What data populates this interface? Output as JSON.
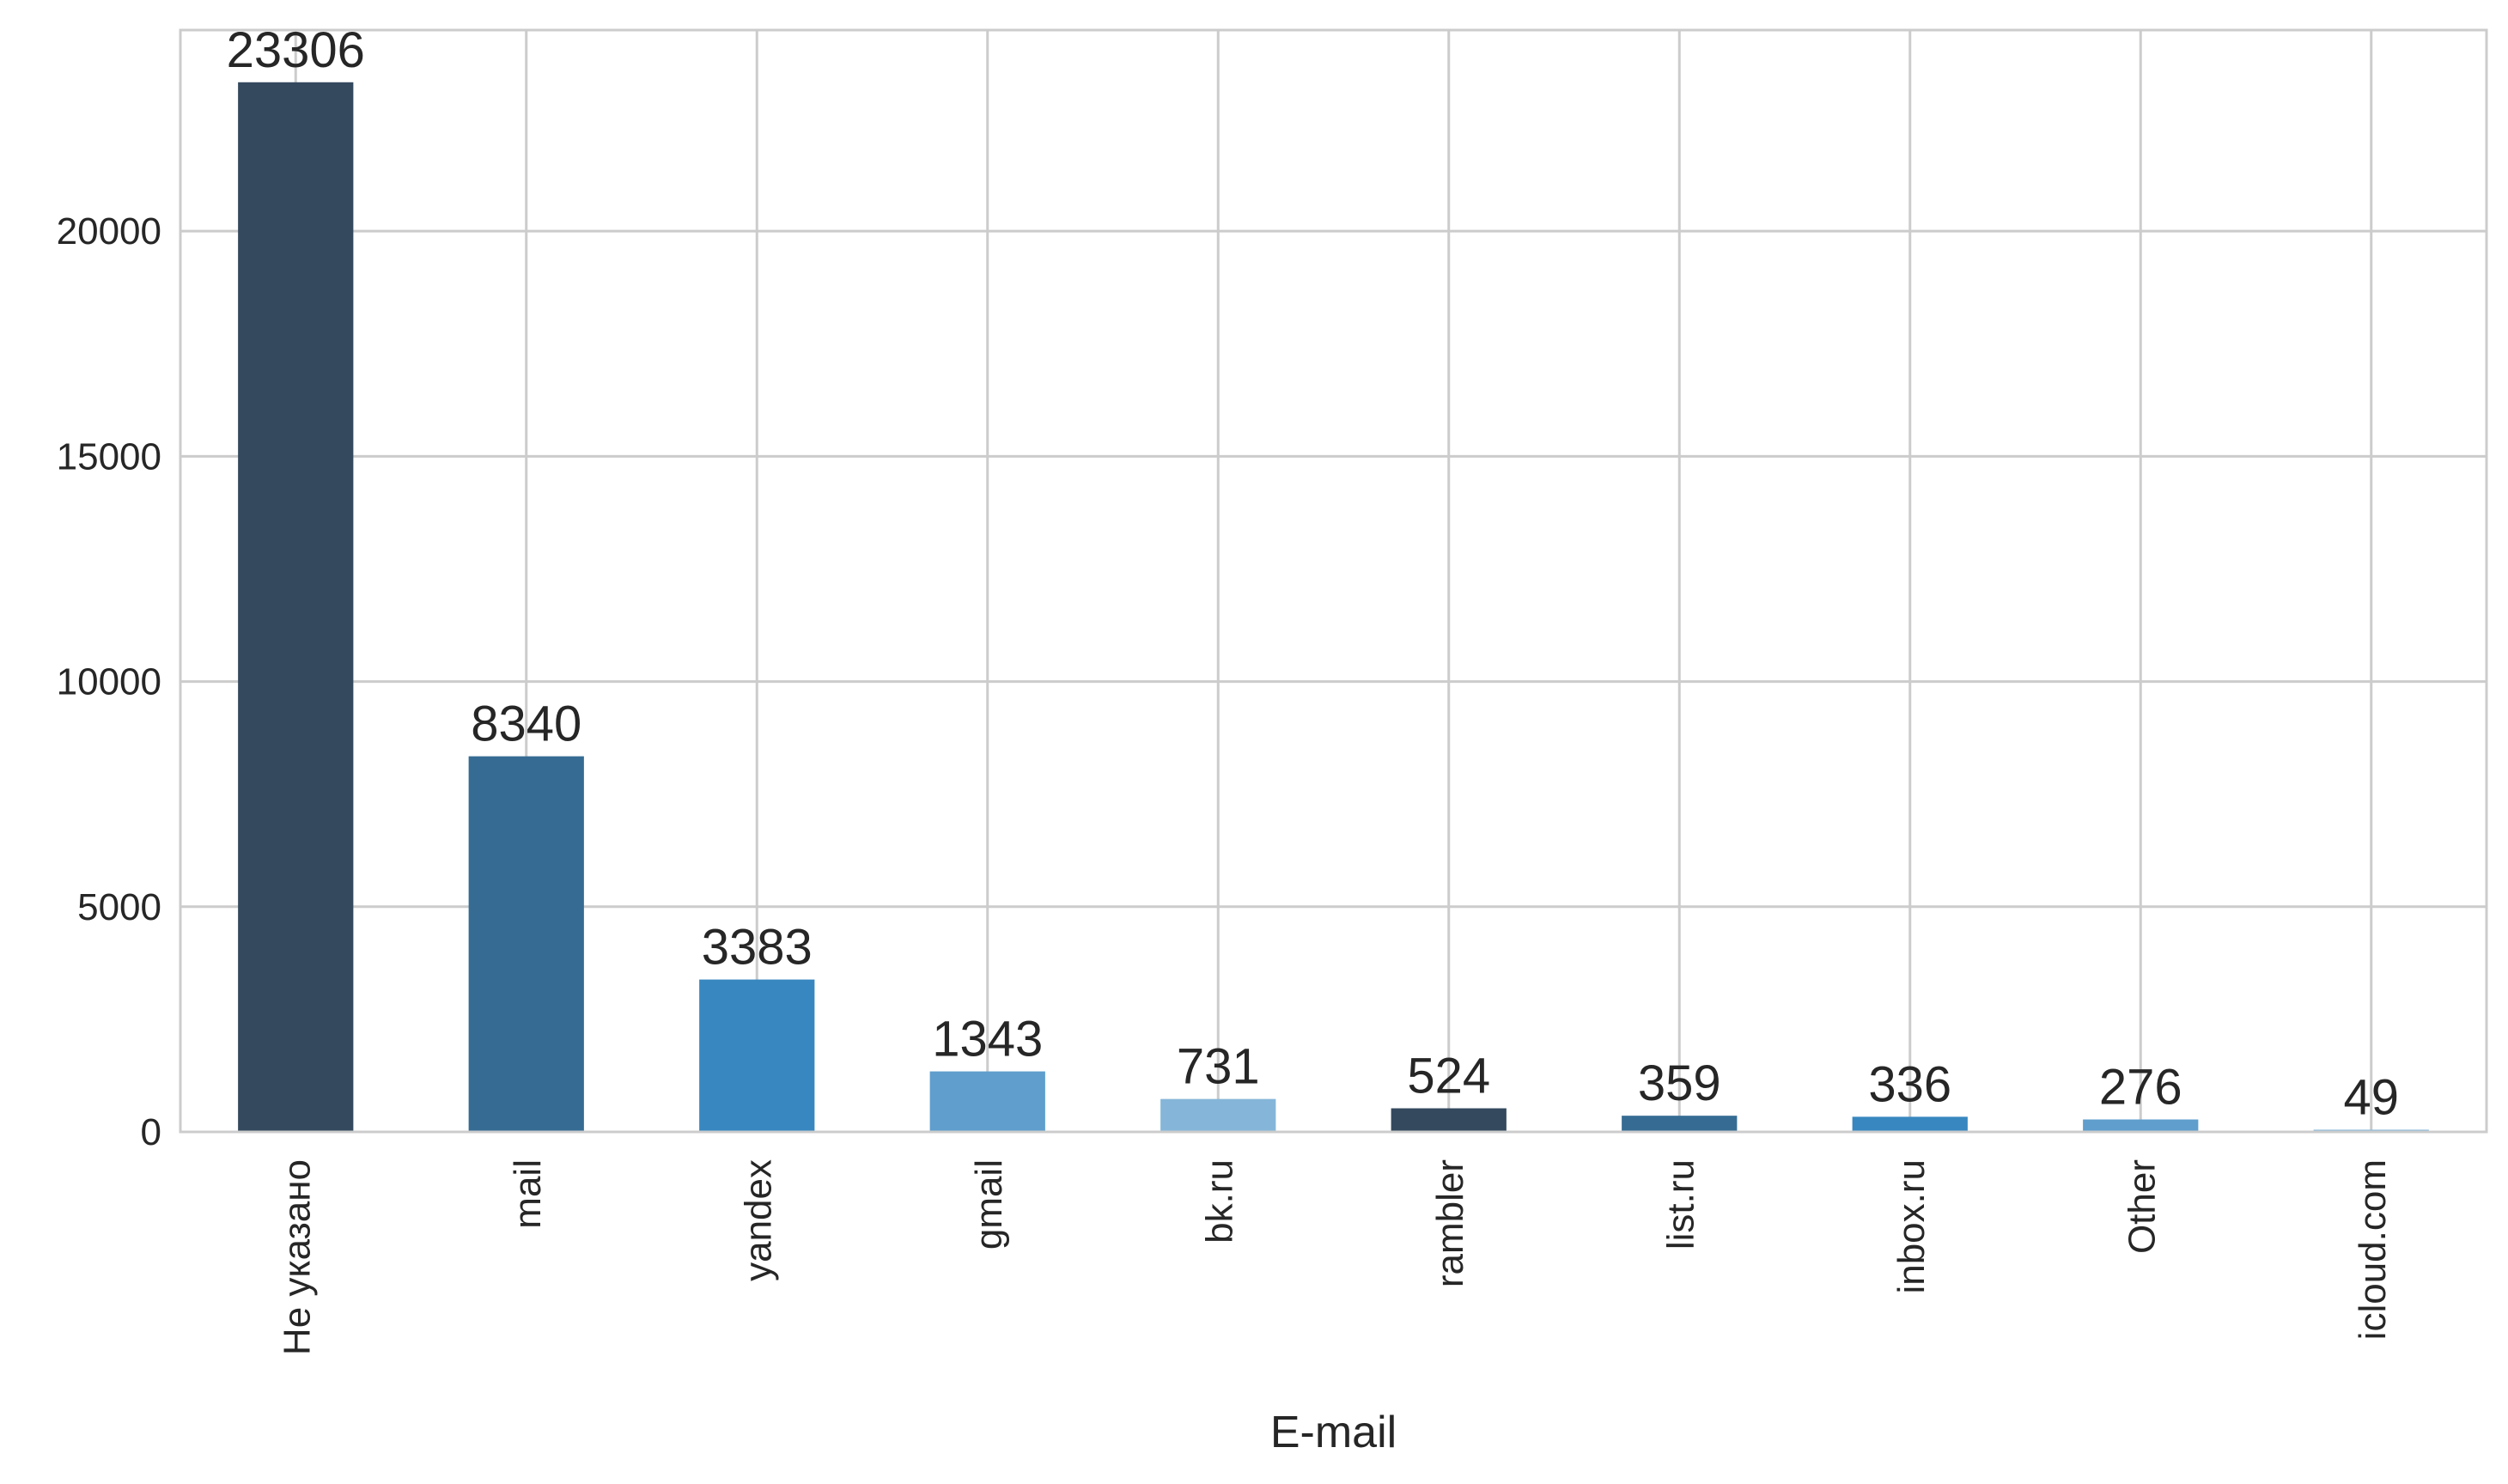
{
  "chart_data": {
    "type": "bar",
    "title": "",
    "xlabel": "E-mail",
    "ylabel": "",
    "categories": [
      "Не указано",
      "mail",
      "yandex",
      "gmail",
      "bk.ru",
      "rambler",
      "list.ru",
      "inbox.ru",
      "Other",
      "icloud.com"
    ],
    "values": [
      23306,
      8340,
      3383,
      1343,
      731,
      524,
      359,
      336,
      276,
      49
    ],
    "data_labels": [
      "23306",
      "8340",
      "3383",
      "1343",
      "731",
      "524",
      "359",
      "336",
      "276",
      "49"
    ],
    "y_ticks": [
      0,
      5000,
      10000,
      15000,
      20000
    ],
    "ylim": [
      0,
      24465
    ],
    "grid": true,
    "legend": "none",
    "colors": [
      "#34495e",
      "#366c93",
      "#3887c0",
      "#5f9ecd",
      "#85b6d9",
      "#34495e",
      "#366c93",
      "#3887c0",
      "#5f9ecd",
      "#85b6d9"
    ],
    "grid_color": "#cccccc",
    "axis_color": "#cccccc"
  }
}
